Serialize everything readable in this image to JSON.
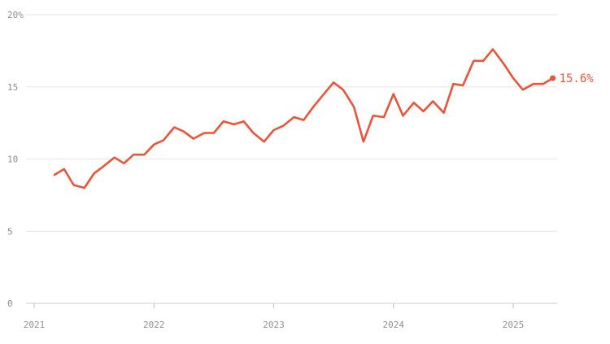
{
  "chart_data": {
    "type": "line",
    "title": "",
    "xlabel": "",
    "ylabel": "",
    "ylim": [
      0,
      20
    ],
    "y_ticks": [
      0,
      5,
      10,
      15,
      20
    ],
    "y_tick_labels": [
      "0",
      "5",
      "10",
      "15",
      "20%"
    ],
    "x_ticks": [
      2021,
      2022,
      2023,
      2024,
      2025
    ],
    "x_tick_labels": [
      "2021",
      "2022",
      "2023",
      "2024",
      "2025"
    ],
    "grid": "horizontal",
    "legend": "none",
    "line_color": "#e8553a",
    "grid_color": "#e6e6e6",
    "series": [
      {
        "x": [
          2021.17,
          2021.25,
          2021.33,
          2021.42,
          2021.5,
          2021.58,
          2021.67,
          2021.75,
          2021.83,
          2021.92,
          2022.0,
          2022.08,
          2022.17,
          2022.25,
          2022.33,
          2022.42,
          2022.5,
          2022.58,
          2022.67,
          2022.75,
          2022.83,
          2022.92,
          2023.0,
          2023.08,
          2023.17,
          2023.25,
          2023.33,
          2023.42,
          2023.5,
          2023.58,
          2023.67,
          2023.75,
          2023.83,
          2023.92,
          2024.0,
          2024.08,
          2024.17,
          2024.25,
          2024.33,
          2024.42,
          2024.5,
          2024.58,
          2024.67,
          2024.75,
          2024.83,
          2024.92,
          2025.0,
          2025.08,
          2025.17,
          2025.25,
          2025.33
        ],
        "values": [
          8.9,
          9.3,
          8.2,
          8.0,
          9.0,
          9.5,
          10.1,
          9.7,
          10.3,
          10.3,
          11.0,
          11.3,
          12.2,
          11.9,
          11.4,
          11.8,
          11.8,
          12.6,
          12.4,
          12.6,
          11.8,
          11.2,
          12.0,
          12.3,
          12.9,
          12.7,
          13.6,
          14.5,
          15.3,
          14.8,
          13.6,
          11.2,
          13.0,
          12.9,
          14.5,
          13.0,
          13.9,
          13.3,
          14.0,
          13.2,
          15.2,
          15.1,
          16.8,
          16.8,
          17.6,
          16.6,
          15.6,
          14.8,
          15.2,
          15.2,
          15.6
        ]
      }
    ],
    "last_value_label": "15.6%"
  }
}
